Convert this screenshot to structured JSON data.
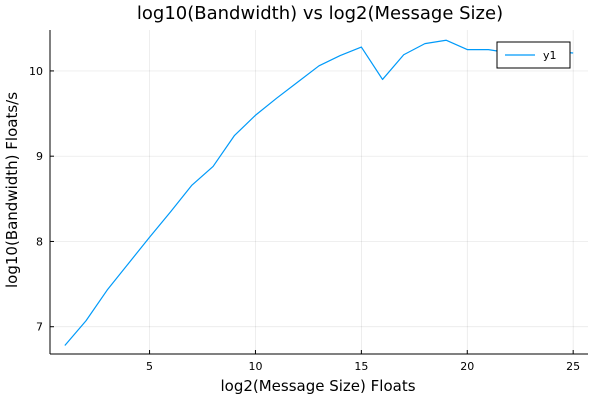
{
  "chart_data": {
    "type": "line",
    "title": "log10(Bandwidth) vs log2(Message Size)",
    "xlabel": "log2(Message Size) Floats",
    "ylabel": "log10(Bandwidth) Floats/s",
    "xlim": [
      0.3,
      25.7
    ],
    "ylim": [
      6.68,
      10.48
    ],
    "x_ticks": [
      5,
      10,
      15,
      20,
      25
    ],
    "y_ticks": [
      7,
      8,
      9,
      10
    ],
    "grid": true,
    "legend_position": "top-right",
    "color": "#009af9",
    "series": [
      {
        "name": "y1",
        "x": [
          1,
          2,
          3,
          4,
          5,
          6,
          7,
          8,
          9,
          10,
          11,
          12,
          13,
          14,
          15,
          16,
          17,
          18,
          19,
          20,
          21,
          22,
          23,
          24,
          25
        ],
        "y": [
          6.78,
          7.07,
          7.43,
          7.74,
          8.05,
          8.35,
          8.66,
          8.88,
          9.24,
          9.48,
          9.68,
          9.87,
          10.06,
          10.18,
          10.28,
          9.9,
          10.19,
          10.32,
          10.36,
          10.25,
          10.25,
          10.21,
          10.21,
          10.23,
          10.21
        ]
      }
    ]
  }
}
